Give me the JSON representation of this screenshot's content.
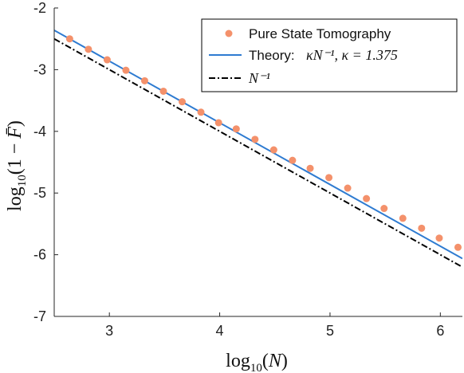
{
  "chart_data": {
    "type": "line",
    "xlabel": "log10(N)",
    "ylabel": "log10(1 - F̄)",
    "xlim": [
      2.5,
      6.2
    ],
    "ylim": [
      -7,
      -2
    ],
    "xticks": [
      3,
      4,
      5,
      6
    ],
    "yticks": [
      -2,
      -3,
      -4,
      -5,
      -6,
      -7
    ],
    "xtick_labels": [
      "3",
      "4",
      "5",
      "6"
    ],
    "ytick_labels": [
      "-2",
      "-3",
      "-4",
      "-5",
      "-6",
      "-7"
    ],
    "grid": false,
    "legend_position": "top-right",
    "series": [
      {
        "name": "Pure State Tomography",
        "kind": "scatter",
        "color": "#f4916b",
        "points": [
          [
            2.64,
            -2.5
          ],
          [
            2.81,
            -2.67
          ],
          [
            2.98,
            -2.84
          ],
          [
            3.15,
            -3.01
          ],
          [
            3.32,
            -3.18
          ],
          [
            3.49,
            -3.35
          ],
          [
            3.66,
            -3.52
          ],
          [
            3.83,
            -3.69
          ],
          [
            3.99,
            -3.86
          ],
          [
            4.15,
            -3.96
          ],
          [
            4.32,
            -4.13
          ],
          [
            4.49,
            -4.3
          ],
          [
            4.66,
            -4.47
          ],
          [
            4.82,
            -4.6
          ],
          [
            4.99,
            -4.75
          ],
          [
            5.16,
            -4.92
          ],
          [
            5.33,
            -5.09
          ],
          [
            5.49,
            -5.25
          ],
          [
            5.66,
            -5.41
          ],
          [
            5.83,
            -5.57
          ],
          [
            5.99,
            -5.73
          ],
          [
            6.16,
            -5.88
          ]
        ]
      },
      {
        "name": "Theory: κN⁻¹, κ = 1.375",
        "kind": "line",
        "color": "#2e7bd1",
        "linestyle": "solid",
        "points": [
          [
            2.5,
            -2.3617
          ],
          [
            6.2,
            -6.0617
          ]
        ]
      },
      {
        "name": "N⁻¹",
        "kind": "line",
        "color": "#000000",
        "linestyle": "dashdot",
        "points": [
          [
            2.5,
            -2.5
          ],
          [
            6.2,
            -6.2
          ]
        ]
      }
    ]
  },
  "legend": {
    "scatter_label": "Pure State Tomography",
    "theory_prefix": "Theory:",
    "theory_math": "κN⁻¹, κ = 1.375",
    "ref_math": "N⁻¹"
  }
}
